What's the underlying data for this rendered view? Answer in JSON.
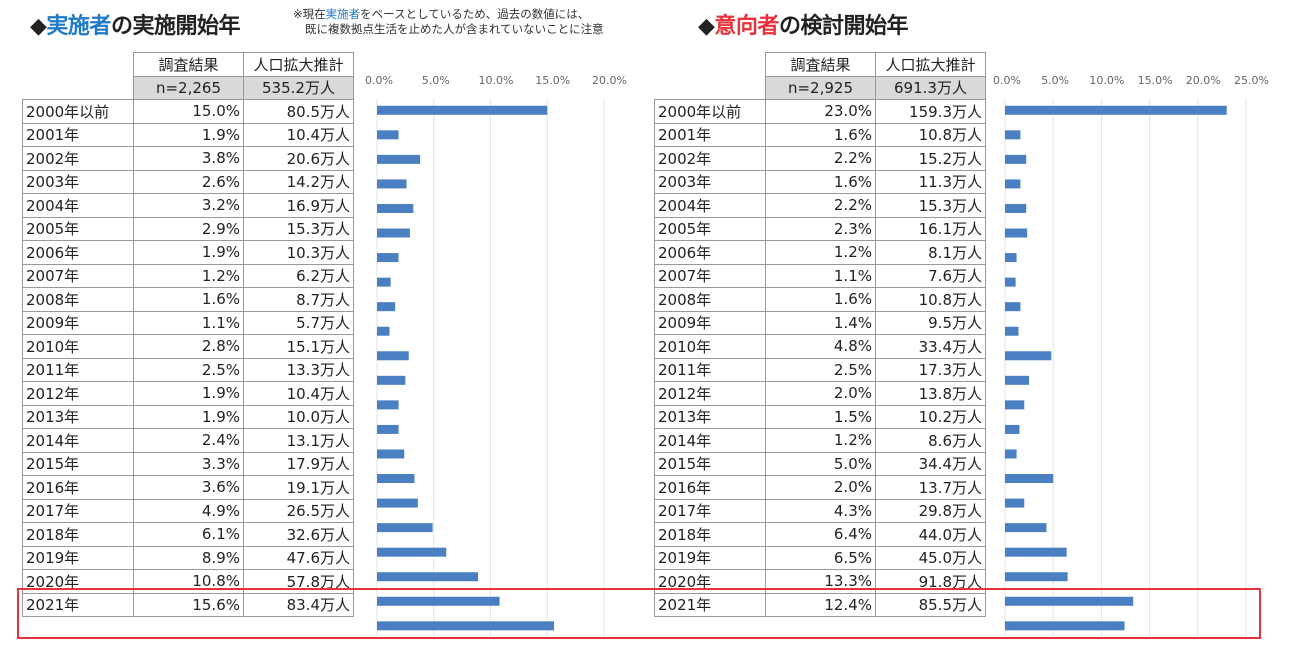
{
  "colors": {
    "bar": "#4a7fc1",
    "accent_blue": "#1f7ac8",
    "accent_red": "#e8323c",
    "highlight_box": "#e8323c"
  },
  "left": {
    "title_prefix": "◆",
    "title_accent": "実施者",
    "title_rest": "の実施開始年",
    "note_line1_a": "※現在",
    "note_line1_accent": "実施者",
    "note_line1_b": "をベースとしているため、過去の数値には、",
    "note_line2": "既に複数拠点生活を止めた人が含まれていないことに注意",
    "col_headers": [
      "調査結果",
      "人口拡大推計"
    ],
    "n_label": "n=2,265",
    "total_label": "535.2万人"
  },
  "right": {
    "title_prefix": "◆",
    "title_accent": "意向者",
    "title_rest": "の検討開始年",
    "col_headers": [
      "調査結果",
      "人口拡大推計"
    ],
    "n_label": "n=2,925",
    "total_label": "691.3万人"
  },
  "chart_data": [
    {
      "type": "bar",
      "orientation": "horizontal",
      "title": "実施者の実施開始年",
      "xlim": [
        0,
        20
      ],
      "xticks": [
        "0.0%",
        "5.0%",
        "10.0%",
        "15.0%",
        "20.0%"
      ],
      "grid": true,
      "categories": [
        "2000年以前",
        "2001年",
        "2002年",
        "2003年",
        "2004年",
        "2005年",
        "2006年",
        "2007年",
        "2008年",
        "2009年",
        "2010年",
        "2011年",
        "2012年",
        "2013年",
        "2014年",
        "2015年",
        "2016年",
        "2017年",
        "2018年",
        "2019年",
        "2020年",
        "2021年"
      ],
      "values": [
        15.0,
        1.9,
        3.8,
        2.6,
        3.2,
        2.9,
        1.9,
        1.2,
        1.6,
        1.1,
        2.8,
        2.5,
        1.9,
        1.9,
        2.4,
        3.3,
        3.6,
        4.9,
        6.1,
        8.9,
        10.8,
        15.6
      ],
      "pct_labels": [
        "15.0%",
        "1.9%",
        "3.8%",
        "2.6%",
        "3.2%",
        "2.9%",
        "1.9%",
        "1.2%",
        "1.6%",
        "1.1%",
        "2.8%",
        "2.5%",
        "1.9%",
        "1.9%",
        "2.4%",
        "3.3%",
        "3.6%",
        "4.9%",
        "6.1%",
        "8.9%",
        "10.8%",
        "15.6%"
      ],
      "estimates": [
        "80.5万人",
        "10.4万人",
        "20.6万人",
        "14.2万人",
        "16.9万人",
        "15.3万人",
        "10.3万人",
        "6.2万人",
        "8.7万人",
        "5.7万人",
        "15.1万人",
        "13.3万人",
        "10.4万人",
        "10.0万人",
        "13.1万人",
        "17.9万人",
        "19.1万人",
        "26.5万人",
        "32.6万人",
        "47.6万人",
        "57.8万人",
        "83.4万人"
      ]
    },
    {
      "type": "bar",
      "orientation": "horizontal",
      "title": "意向者の検討開始年",
      "xlim": [
        0,
        25
      ],
      "xticks": [
        "0.0%",
        "5.0%",
        "10.0%",
        "15.0%",
        "20.0%",
        "25.0%"
      ],
      "grid": true,
      "categories": [
        "2000年以前",
        "2001年",
        "2002年",
        "2003年",
        "2004年",
        "2005年",
        "2006年",
        "2007年",
        "2008年",
        "2009年",
        "2010年",
        "2011年",
        "2012年",
        "2013年",
        "2014年",
        "2015年",
        "2016年",
        "2017年",
        "2018年",
        "2019年",
        "2020年",
        "2021年"
      ],
      "values": [
        23.0,
        1.6,
        2.2,
        1.6,
        2.2,
        2.3,
        1.2,
        1.1,
        1.6,
        1.4,
        4.8,
        2.5,
        2.0,
        1.5,
        1.2,
        5.0,
        2.0,
        4.3,
        6.4,
        6.5,
        13.3,
        12.4
      ],
      "pct_labels": [
        "23.0%",
        "1.6%",
        "2.2%",
        "1.6%",
        "2.2%",
        "2.3%",
        "1.2%",
        "1.1%",
        "1.6%",
        "1.4%",
        "4.8%",
        "2.5%",
        "2.0%",
        "1.5%",
        "1.2%",
        "5.0%",
        "2.0%",
        "4.3%",
        "6.4%",
        "6.5%",
        "13.3%",
        "12.4%"
      ],
      "estimates": [
        "159.3万人",
        "10.8万人",
        "15.2万人",
        "11.3万人",
        "15.3万人",
        "16.1万人",
        "8.1万人",
        "7.6万人",
        "10.8万人",
        "9.5万人",
        "33.4万人",
        "17.3万人",
        "13.8万人",
        "10.2万人",
        "8.6万人",
        "34.4万人",
        "13.7万人",
        "29.8万人",
        "44.0万人",
        "45.0万人",
        "91.8万人",
        "85.5万人"
      ]
    }
  ]
}
